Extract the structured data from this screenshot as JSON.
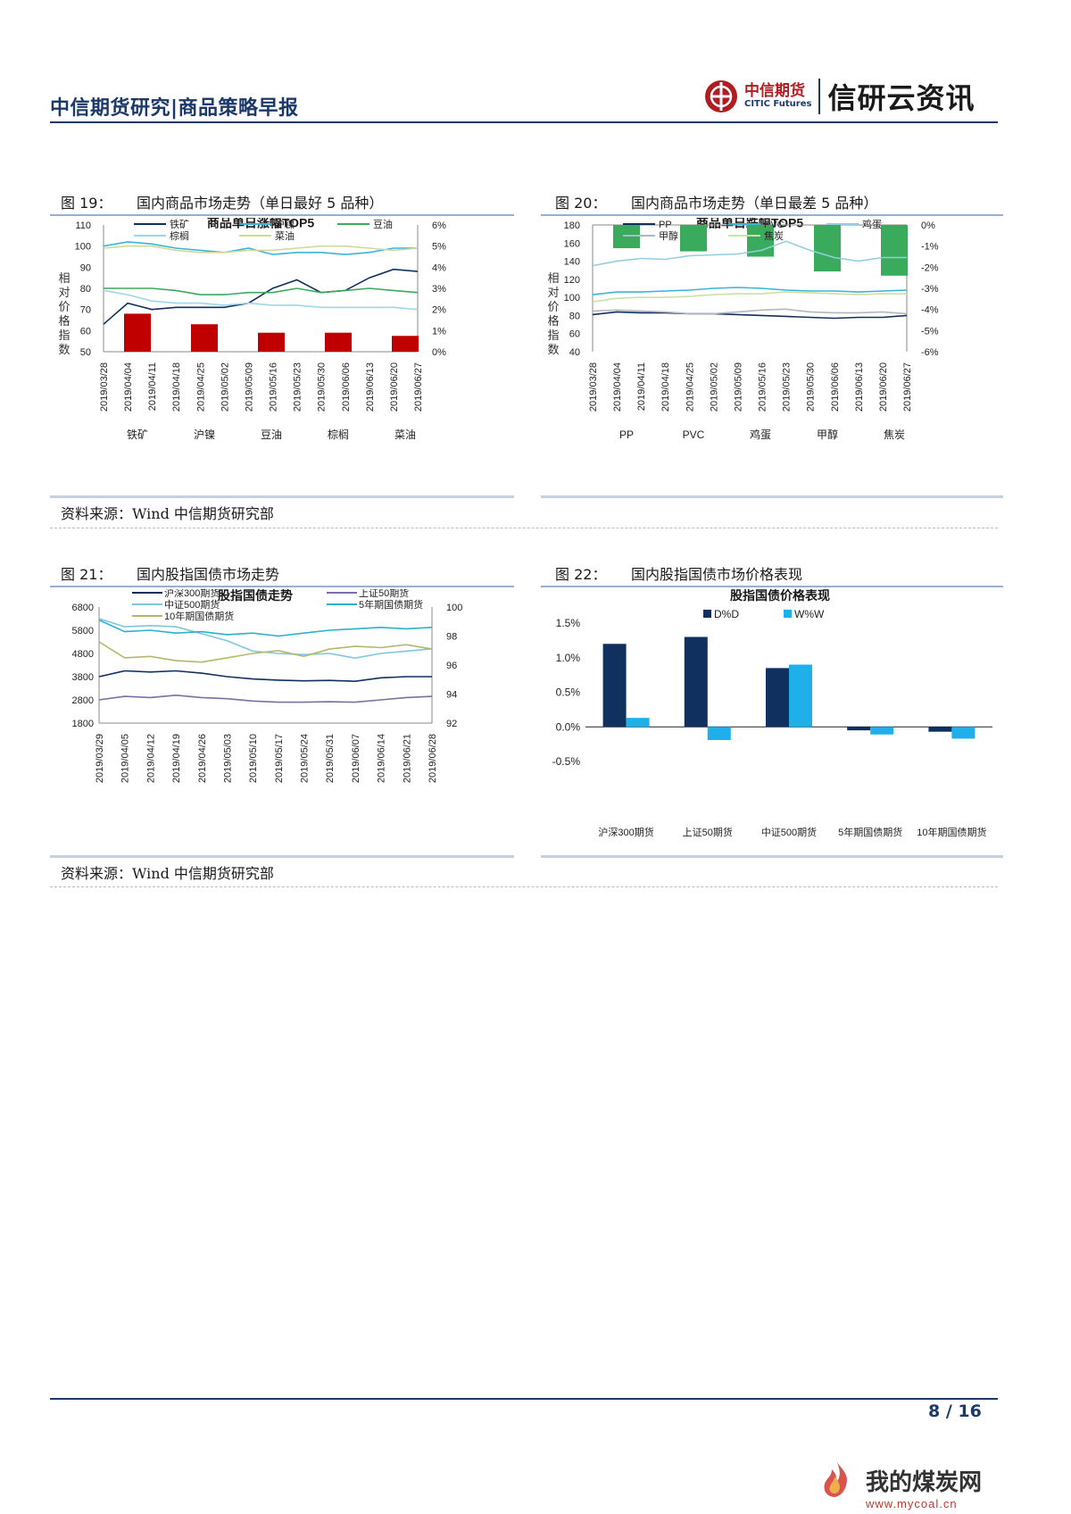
{
  "header": {
    "title": "中信期货研究|商品策略早报",
    "logo_cn": "中信期货",
    "logo_en": "CITIC Futures",
    "slogan": "信研云资讯"
  },
  "figures": {
    "fig19": {
      "num": "图 19：",
      "title": "国内商品市场走势（单日最好 5 品种）"
    },
    "fig20": {
      "num": "图 20：",
      "title": "国内商品市场走势（单日最差 5 品种）"
    },
    "fig21": {
      "num": "图 21：",
      "title": "国内股指国债市场走势"
    },
    "fig22": {
      "num": "图 22：",
      "title": "国内股指国债市场价格表现"
    }
  },
  "source_text": "资料来源：Wind  中信期货研究部",
  "footer": {
    "page": "8 / 16"
  },
  "watermark": {
    "cn": "我的煤炭网",
    "en": "www.mycoal.cn"
  },
  "colors": {
    "navy": "#1b3a6b",
    "red": "#c00000",
    "green": "#3aaa5c",
    "dark_blue": "#10305f",
    "light_blue": "#1fb0ec"
  },
  "chart_data": [
    {
      "id": "fig19",
      "type": "line+bar",
      "title": "商品单日涨幅TOP5",
      "ylabel": "相对价格指数",
      "ylim_left": [
        50,
        110
      ],
      "yticks_left": [
        "110",
        "100",
        "90",
        "80",
        "70",
        "60",
        "50"
      ],
      "ylim_right": [
        0,
        6
      ],
      "yticks_right": [
        "6%",
        "5%",
        "4%",
        "3%",
        "2%",
        "1%",
        "0%"
      ],
      "dates": [
        "2019/03/28",
        "2019/04/04",
        "2019/04/11",
        "2019/04/18",
        "2019/04/25",
        "2019/05/02",
        "2019/05/09",
        "2019/05/16",
        "2019/05/23",
        "2019/05/30",
        "2019/06/06",
        "2019/06/13",
        "2019/06/20",
        "2019/06/27"
      ],
      "series": [
        {
          "name": "铁矿",
          "color": "#10305f",
          "values": [
            63,
            73,
            70,
            71,
            71,
            71,
            73,
            80,
            84,
            78,
            79,
            85,
            89,
            88
          ]
        },
        {
          "name": "沪镍",
          "color": "#3cb3d8",
          "values": [
            100,
            102,
            101,
            99,
            98,
            97,
            99,
            96,
            97,
            97,
            96,
            97,
            99,
            99
          ]
        },
        {
          "name": "豆油",
          "color": "#3aaa5c",
          "values": [
            80,
            80,
            80,
            79,
            77,
            77,
            78,
            78,
            80,
            78,
            79,
            80,
            79,
            78
          ]
        },
        {
          "name": "棕榈",
          "color": "#9fd6e8",
          "values": [
            79,
            77,
            74,
            73,
            73,
            72,
            73,
            72,
            72,
            71,
            71,
            71,
            71,
            70
          ]
        },
        {
          "name": "菜油",
          "color": "#cfd99a",
          "values": [
            99,
            100,
            100,
            98,
            97,
            97,
            98,
            98,
            99,
            100,
            100,
            99,
            98,
            99
          ]
        }
      ],
      "bars": {
        "categories": [
          "铁矿",
          "沪镍",
          "豆油",
          "棕榈",
          "菜油"
        ],
        "values_pct": [
          1.8,
          1.3,
          0.9,
          0.9,
          0.75
        ],
        "color": "#c00000"
      }
    },
    {
      "id": "fig20",
      "type": "line+bar",
      "title": "商品单日跌幅TOP5",
      "ylabel": "相对价格指数",
      "ylim_left": [
        40,
        180
      ],
      "yticks_left": [
        "180",
        "160",
        "140",
        "120",
        "100",
        "80",
        "60",
        "40"
      ],
      "ylim_right": [
        -6,
        0
      ],
      "yticks_right": [
        "0%",
        "-1%",
        "-2%",
        "-3%",
        "-4%",
        "-5%",
        "-6%"
      ],
      "dates": [
        "2019/03/28",
        "2019/04/04",
        "2019/04/11",
        "2019/04/18",
        "2019/04/25",
        "2019/05/02",
        "2019/05/09",
        "2019/05/16",
        "2019/05/23",
        "2019/05/30",
        "2019/06/06",
        "2019/06/13",
        "2019/06/20",
        "2019/06/27"
      ],
      "series": [
        {
          "name": "PP",
          "color": "#10305f",
          "values": [
            81,
            84,
            83,
            83,
            82,
            82,
            81,
            80,
            79,
            78,
            77,
            78,
            78,
            80
          ]
        },
        {
          "name": "PVC",
          "color": "#3cb3d8",
          "values": [
            103,
            106,
            106,
            107,
            108,
            110,
            111,
            110,
            108,
            107,
            107,
            106,
            107,
            108
          ]
        },
        {
          "name": "鸡蛋",
          "color": "#8fcfe0",
          "values": [
            135,
            140,
            143,
            142,
            146,
            147,
            148,
            152,
            162,
            152,
            144,
            140,
            144,
            144
          ]
        },
        {
          "name": "甲醇",
          "color": "#b0b7bf",
          "values": [
            85,
            86,
            85,
            84,
            82,
            82,
            84,
            86,
            87,
            84,
            83,
            83,
            84,
            82
          ]
        },
        {
          "name": "焦炭",
          "color": "#c8e3a5",
          "values": [
            95,
            99,
            100,
            100,
            101,
            103,
            104,
            104,
            106,
            105,
            104,
            103,
            104,
            104
          ]
        }
      ],
      "bars": {
        "categories": [
          "PP",
          "PVC",
          "鸡蛋",
          "甲醇",
          "焦炭"
        ],
        "values_pct": [
          -1.1,
          -1.25,
          -1.5,
          -2.2,
          -2.4
        ],
        "color": "#3aaa5c"
      }
    },
    {
      "id": "fig21",
      "type": "line",
      "title": "股指国债走势",
      "ylim_left": [
        1800,
        6800
      ],
      "yticks_left": [
        "6800",
        "5800",
        "4800",
        "3800",
        "2800",
        "1800"
      ],
      "ylim_right": [
        92,
        100
      ],
      "yticks_right": [
        "100",
        "98",
        "96",
        "94",
        "92"
      ],
      "dates": [
        "2019/03/29",
        "2019/04/05",
        "2019/04/12",
        "2019/04/19",
        "2019/04/26",
        "2019/05/03",
        "2019/05/10",
        "2019/05/17",
        "2019/05/24",
        "2019/05/31",
        "2019/06/07",
        "2019/06/14",
        "2019/06/21",
        "2019/06/28"
      ],
      "series": [
        {
          "name": "沪深300期货",
          "axis": "left",
          "color": "#10305f",
          "values": [
            3800,
            4050,
            4000,
            4050,
            3950,
            3800,
            3700,
            3650,
            3620,
            3640,
            3600,
            3750,
            3800,
            3800
          ]
        },
        {
          "name": "上证50期货",
          "axis": "left",
          "color": "#7a6fa6",
          "values": [
            2800,
            2950,
            2900,
            3000,
            2900,
            2850,
            2750,
            2700,
            2700,
            2720,
            2700,
            2800,
            2900,
            2950
          ]
        },
        {
          "name": "中证500期货",
          "axis": "left",
          "color": "#7fc6dc",
          "values": [
            6300,
            5950,
            6000,
            5950,
            5650,
            5350,
            4900,
            4800,
            4750,
            4800,
            4600,
            4800,
            4900,
            5000
          ]
        },
        {
          "name": "5年期国债期货",
          "axis": "right",
          "color": "#2ab0d0",
          "values": [
            99.1,
            98.3,
            98.4,
            98.2,
            98.3,
            98.1,
            98.2,
            98.0,
            98.2,
            98.4,
            98.5,
            98.6,
            98.5,
            98.6
          ]
        },
        {
          "name": "10年期国债期货",
          "axis": "right",
          "color": "#b5b86a",
          "values": [
            97.6,
            96.5,
            96.6,
            96.3,
            96.2,
            96.5,
            96.8,
            97.0,
            96.6,
            97.1,
            97.3,
            97.2,
            97.4,
            97.1
          ]
        }
      ]
    },
    {
      "id": "fig22",
      "type": "bar",
      "title": "股指国债价格表现",
      "categories": [
        "沪深300期货",
        "上证50期货",
        "中证500期货",
        "5年期国债期货",
        "10年期国债期货"
      ],
      "ylim": [
        -0.5,
        1.5
      ],
      "yticks": [
        "1.5%",
        "1.0%",
        "0.5%",
        "0.0%",
        "-0.5%"
      ],
      "series": [
        {
          "name": "D%D",
          "color": "#10305f",
          "values": [
            1.2,
            1.3,
            0.85,
            -0.05,
            -0.07
          ]
        },
        {
          "name": "W%W",
          "color": "#1fb0ec",
          "values": [
            0.13,
            -0.19,
            0.9,
            -0.11,
            -0.17
          ]
        }
      ]
    }
  ]
}
